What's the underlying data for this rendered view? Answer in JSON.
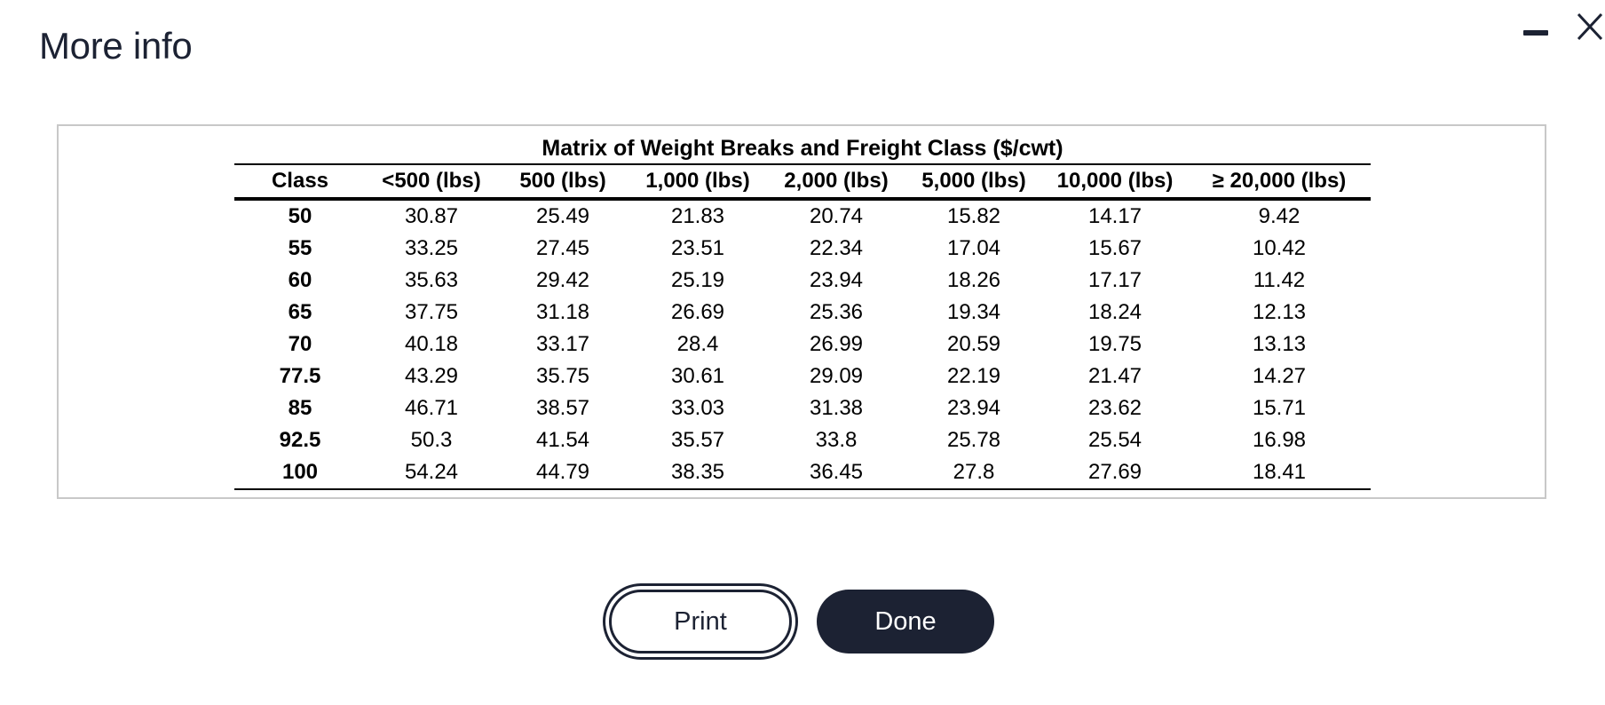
{
  "dialog": {
    "title": "More info",
    "print_label": "Print",
    "done_label": "Done"
  },
  "matrix": {
    "title": "Matrix of Weight Breaks and Freight Class ($/cwt)",
    "columns": [
      "Class",
      "<500 (lbs)",
      "500 (lbs)",
      "1,000 (lbs)",
      "2,000 (lbs)",
      "5,000 (lbs)",
      "10,000 (lbs)",
      "≥ 20,000 (lbs)"
    ],
    "rows": [
      [
        "50",
        "30.87",
        "25.49",
        "21.83",
        "20.74",
        "15.82",
        "14.17",
        "9.42"
      ],
      [
        "55",
        "33.25",
        "27.45",
        "23.51",
        "22.34",
        "17.04",
        "15.67",
        "10.42"
      ],
      [
        "60",
        "35.63",
        "29.42",
        "25.19",
        "23.94",
        "18.26",
        "17.17",
        "11.42"
      ],
      [
        "65",
        "37.75",
        "31.18",
        "26.69",
        "25.36",
        "19.34",
        "18.24",
        "12.13"
      ],
      [
        "70",
        "40.18",
        "33.17",
        "28.4",
        "26.99",
        "20.59",
        "19.75",
        "13.13"
      ],
      [
        "77.5",
        "43.29",
        "35.75",
        "30.61",
        "29.09",
        "22.19",
        "21.47",
        "14.27"
      ],
      [
        "85",
        "46.71",
        "38.57",
        "33.03",
        "31.38",
        "23.94",
        "23.62",
        "15.71"
      ],
      [
        "92.5",
        "50.3",
        "41.54",
        "35.57",
        "33.8",
        "25.78",
        "25.54",
        "16.98"
      ],
      [
        "100",
        "54.24",
        "44.79",
        "38.35",
        "36.45",
        "27.8",
        "27.69",
        "18.41"
      ]
    ]
  },
  "icons": {
    "minimize": "minimize-icon",
    "close": "close-icon"
  },
  "colors": {
    "primary_dark": "#1c2233",
    "box_border": "#c8c8c8"
  }
}
